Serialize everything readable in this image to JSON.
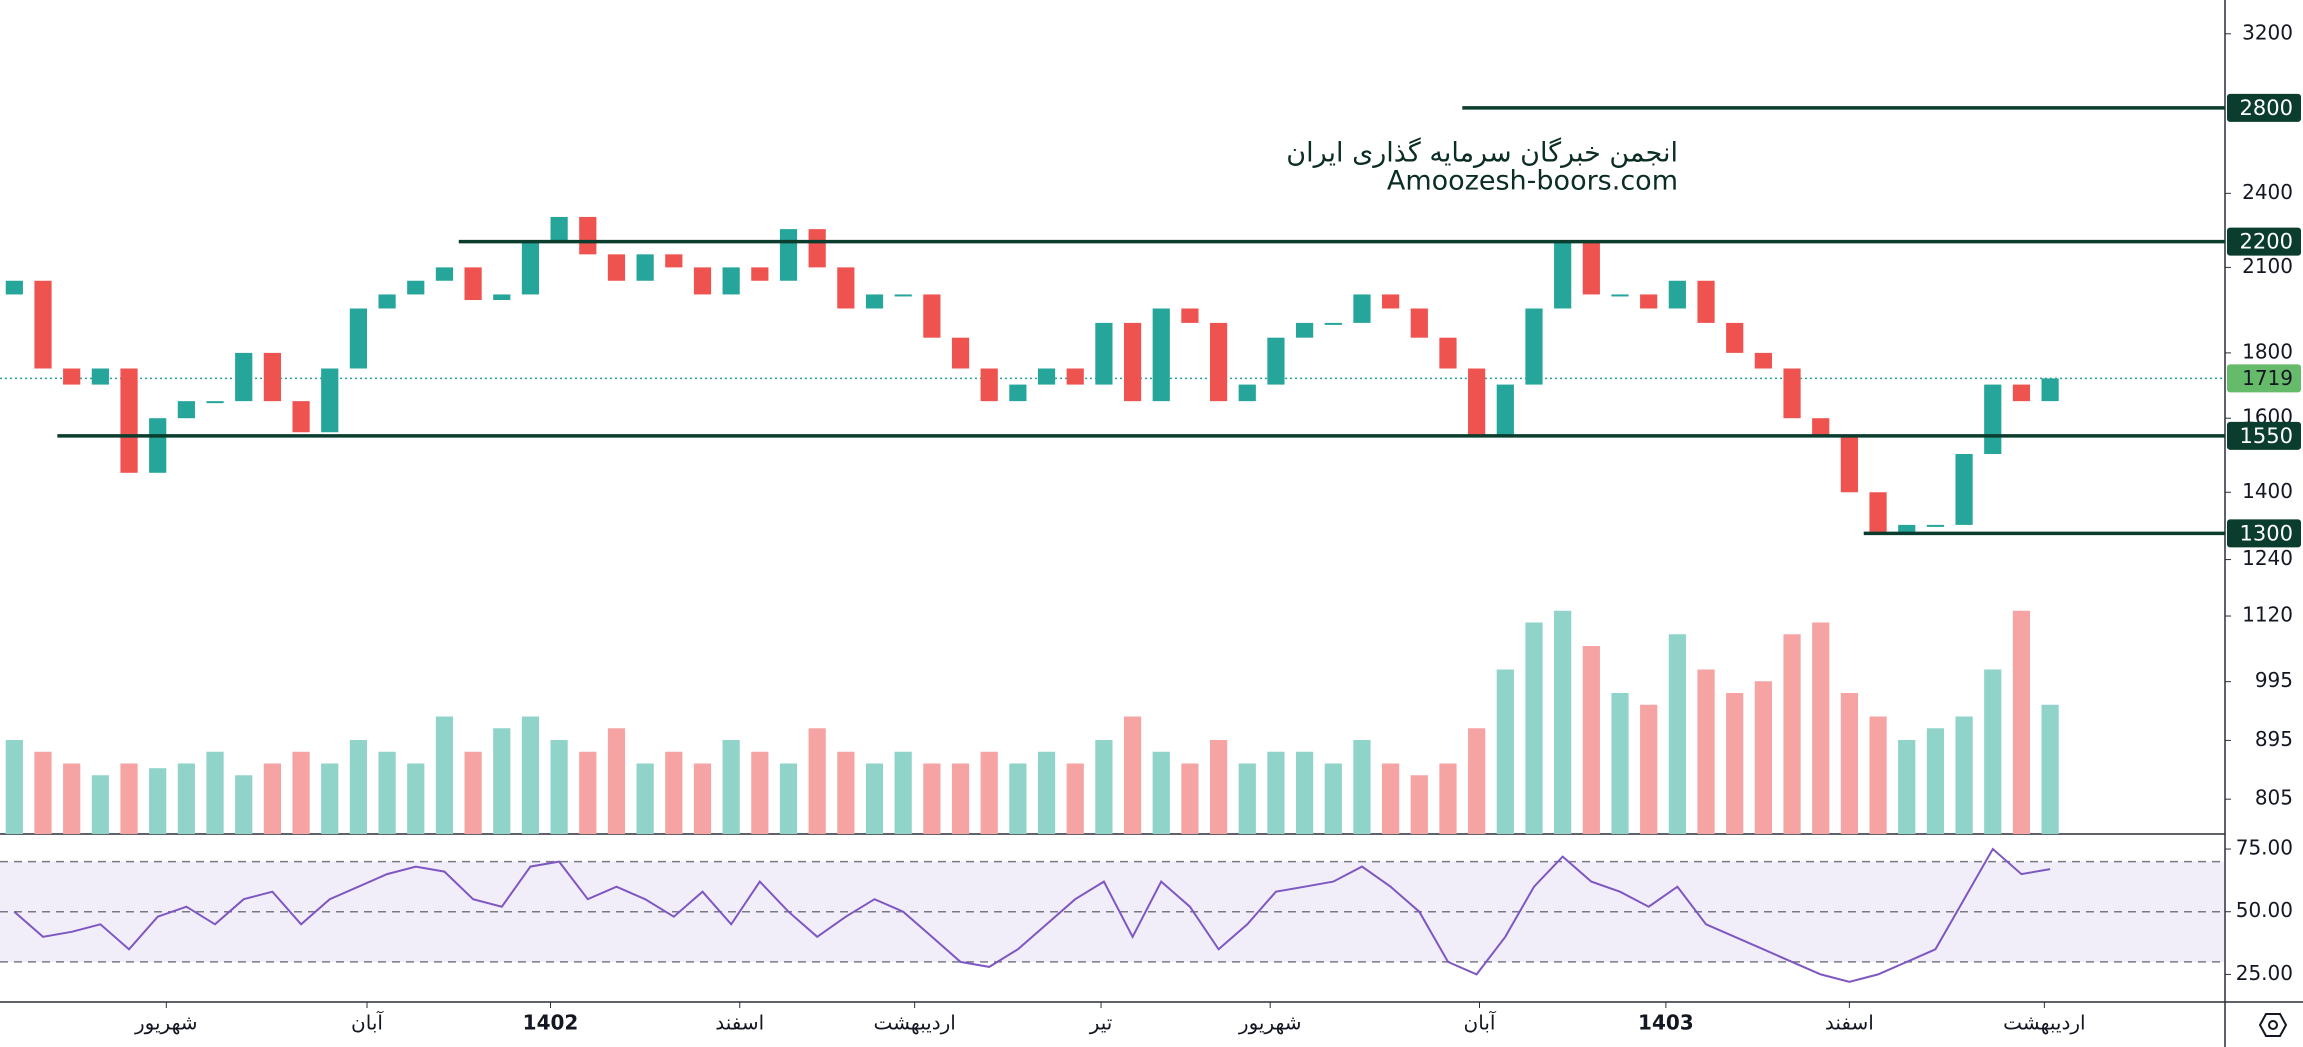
{
  "watermark": {
    "line1": "انجمن خبرگان سرمایه گذاری ایران",
    "line2": "Amoozesh-boors.com"
  },
  "chart_data": [
    {
      "type": "candlestick",
      "open": [
        2000,
        2050,
        1750,
        1700,
        1750,
        1450,
        1600,
        1650,
        1650,
        1800,
        1650,
        1560,
        1750,
        1950,
        2000,
        2050,
        2100,
        1980,
        2000,
        2200,
        2300,
        2150,
        2050,
        2150,
        2100,
        2000,
        2100,
        2050,
        2250,
        2100,
        1950,
        2000,
        2000,
        1850,
        1750,
        1650,
        1700,
        1750,
        1700,
        1900,
        1650,
        1950,
        1900,
        1650,
        1700,
        1850,
        1900,
        1900,
        2000,
        1950,
        1850,
        1750,
        1550,
        1700,
        1950,
        2200,
        2000,
        2000,
        1950,
        2050,
        1900,
        1800,
        1750,
        1600,
        1550,
        1400,
        1300,
        1320,
        1320,
        1500,
        1700,
        1650
      ],
      "close": [
        2050,
        1750,
        1700,
        1750,
        1450,
        1600,
        1650,
        1650,
        1800,
        1650,
        1560,
        1750,
        1950,
        2000,
        2050,
        2100,
        1980,
        2000,
        2200,
        2300,
        2150,
        2050,
        2150,
        2100,
        2000,
        2100,
        2050,
        2250,
        2100,
        1950,
        2000,
        2000,
        1850,
        1750,
        1650,
        1700,
        1750,
        1700,
        1900,
        1650,
        1950,
        1900,
        1650,
        1700,
        1850,
        1900,
        1900,
        2000,
        1950,
        1850,
        1750,
        1550,
        1700,
        1950,
        2200,
        2000,
        2000,
        1950,
        2050,
        1900,
        1800,
        1750,
        1600,
        1550,
        1400,
        1300,
        1320,
        1320,
        1500,
        1700,
        1650,
        1719
      ],
      "log": true,
      "ylim": [
        756,
        3401
      ],
      "yticks": [
        3200,
        2400,
        2100,
        1800,
        1600,
        1400,
        1240,
        1120,
        995,
        895,
        805
      ],
      "xlim": [
        0,
        77.6
      ],
      "xticks": [
        {
          "value": 5.8,
          "label": "شهریور"
        },
        {
          "value": 12.8,
          "label": "آبان"
        },
        {
          "value": 19.2,
          "label": "1402"
        },
        {
          "value": 25.8,
          "label": "اسفند"
        },
        {
          "value": 31.9,
          "label": "اردیبهشت"
        },
        {
          "value": 38.4,
          "label": "تیر"
        },
        {
          "value": 44.3,
          "label": "شهریور"
        },
        {
          "value": 51.6,
          "label": "آبان"
        },
        {
          "value": 58.1,
          "label": "1403"
        },
        {
          "value": 64.5,
          "label": "اسفند"
        },
        {
          "value": 71.3,
          "label": "اردیبهشت"
        }
      ],
      "up_color": "#26a69a",
      "down_color": "#ef5350",
      "levels": [
        {
          "value": 2800,
          "from": 51
        },
        {
          "value": 2200,
          "from": 16
        },
        {
          "value": 1550,
          "from": 2
        },
        {
          "value": 1300,
          "from": 65
        }
      ],
      "level_color": "#0b3d2e",
      "last_color": "#66bb6a"
    },
    {
      "type": "bar",
      "values": [
        40,
        35,
        30,
        25,
        30,
        28,
        30,
        35,
        25,
        30,
        35,
        30,
        40,
        35,
        30,
        50,
        35,
        45,
        50,
        40,
        35,
        45,
        30,
        35,
        30,
        40,
        35,
        30,
        45,
        35,
        30,
        35,
        30,
        30,
        35,
        30,
        35,
        30,
        40,
        50,
        35,
        30,
        40,
        30,
        35,
        35,
        30,
        40,
        30,
        25,
        30,
        45,
        70,
        90,
        95,
        80,
        60,
        55,
        85,
        70,
        60,
        65,
        85,
        90,
        60,
        50,
        40,
        45,
        50,
        70,
        95,
        55
      ],
      "ylim": [
        0,
        100
      ],
      "up_color": "#8fd3c9",
      "down_color": "#f5a3a3"
    },
    {
      "type": "line",
      "values": [
        50,
        40,
        42,
        45,
        35,
        48,
        52,
        45,
        55,
        58,
        45,
        55,
        60,
        65,
        68,
        66,
        55,
        52,
        68,
        70,
        55,
        60,
        55,
        48,
        58,
        45,
        62,
        50,
        40,
        48,
        55,
        50,
        40,
        30,
        28,
        35,
        45,
        55,
        62,
        40,
        62,
        52,
        35,
        45,
        58,
        60,
        62,
        68,
        60,
        50,
        30,
        25,
        40,
        60,
        72,
        62,
        58,
        52,
        60,
        45,
        40,
        35,
        30,
        25,
        22,
        25,
        30,
        35,
        55,
        75,
        65,
        67
      ],
      "ylim": [
        14,
        81
      ],
      "yticks": [
        {
          "value": 75,
          "label": "75.00"
        },
        {
          "value": 50,
          "label": "50.00"
        },
        {
          "value": 25,
          "label": "25.00"
        }
      ],
      "levels": [
        70,
        50,
        30
      ],
      "color": "#7e57c2",
      "band_color": "rgba(126,87,194,0.1)"
    }
  ]
}
